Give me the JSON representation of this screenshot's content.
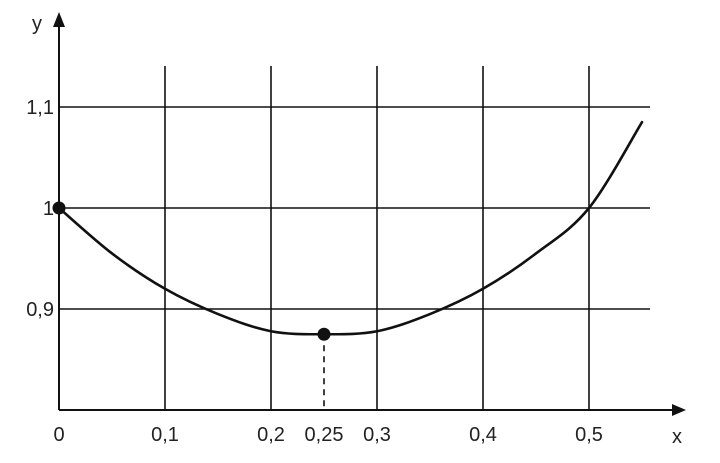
{
  "chart_data": {
    "type": "line",
    "xlabel": "x",
    "ylabel": "y",
    "xlim": [
      0,
      0.55
    ],
    "ylim": [
      0.8,
      1.15
    ],
    "grid": true,
    "x_ticks": [
      {
        "value": 0,
        "label": "0"
      },
      {
        "value": 0.1,
        "label": "0,1"
      },
      {
        "value": 0.2,
        "label": "0,2"
      },
      {
        "value": 0.25,
        "label": "0,25"
      },
      {
        "value": 0.3,
        "label": "0,3"
      },
      {
        "value": 0.4,
        "label": "0,4"
      },
      {
        "value": 0.5,
        "label": "0,5"
      }
    ],
    "y_ticks": [
      {
        "value": 0.9,
        "label": "0,9"
      },
      {
        "value": 1.0,
        "label": "1"
      },
      {
        "value": 1.1,
        "label": "1,1"
      }
    ],
    "grid_x": [
      0.1,
      0.2,
      0.3,
      0.4,
      0.5
    ],
    "grid_y": [
      0.9,
      1.0,
      1.1
    ],
    "series": [
      {
        "color": "#111111",
        "x": [
          0,
          0.05,
          0.1,
          0.15,
          0.2,
          0.25,
          0.3,
          0.35,
          0.4,
          0.45,
          0.5,
          0.55
        ],
        "y": [
          1.0,
          0.955,
          0.92,
          0.895,
          0.878,
          0.875,
          0.878,
          0.895,
          0.92,
          0.955,
          1.0,
          1.085
        ]
      }
    ],
    "marked_points": [
      {
        "x": 0,
        "y": 1.0
      },
      {
        "x": 0.25,
        "y": 0.875
      }
    ],
    "dashed_drop_lines": [
      {
        "x": 0.25,
        "y": 0.875
      }
    ],
    "colors": {
      "axis": "#111111",
      "grid": "#111111",
      "curve": "#111111"
    }
  }
}
